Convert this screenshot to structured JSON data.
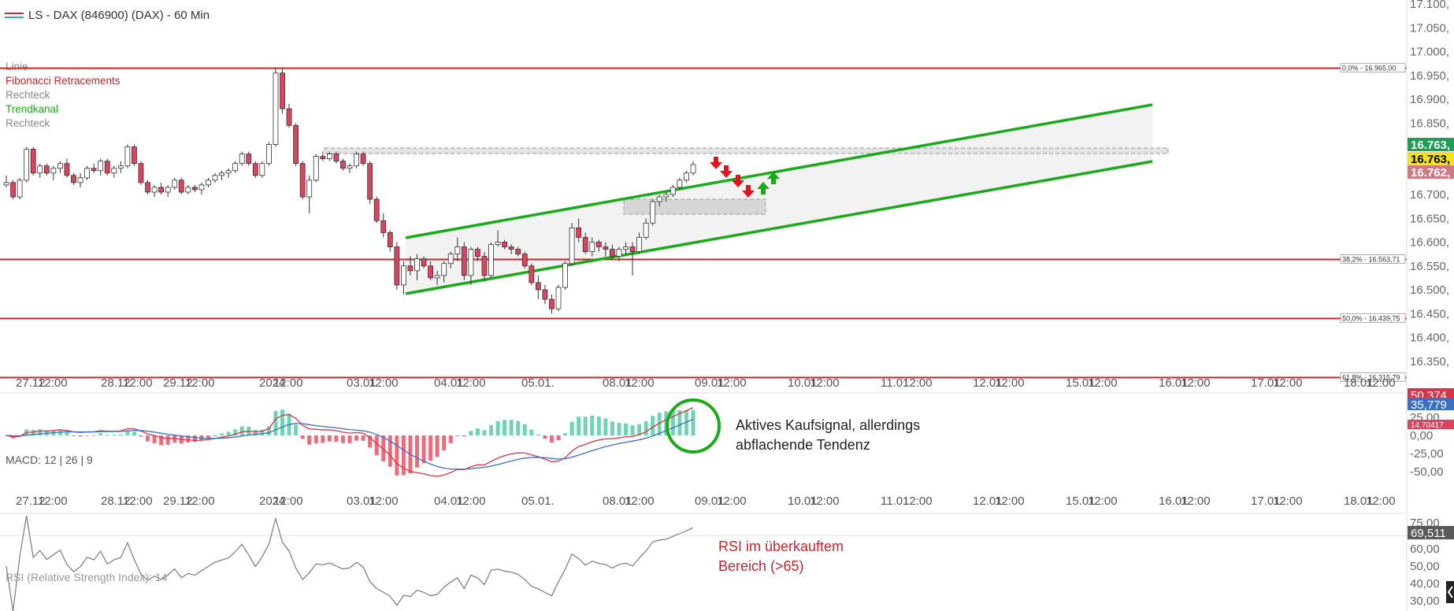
{
  "header": {
    "title": "LS - DAX (846900) (DAX) - 60 Min"
  },
  "colors": {
    "background": "#ffffff",
    "bull": "#2cb98d",
    "bear": "#d9455f",
    "channel": "#1aaa1a",
    "fib": "#c0282d",
    "macd_line": "#d6364a",
    "signal_line": "#3a6fc4",
    "rsi_line": "#7a7a7a",
    "annotation_red": "#c0282d",
    "annotation_dark": "#222222"
  },
  "drawing_legend": [
    {
      "label": "Linie",
      "color": "#8a8a8a"
    },
    {
      "label": "Fibonacci Retracements",
      "color": "#c0282d"
    },
    {
      "label": "Rechteck",
      "color": "#8a8a8a"
    },
    {
      "label": "Trendkanal",
      "color": "#1aaa1a"
    },
    {
      "label": "Rechteck",
      "color": "#8a8a8a"
    }
  ],
  "x_axis_labels": [
    "27.12",
    "12:00",
    "28.12",
    "12:00",
    "29.12",
    "12:00",
    "2024",
    "12:00",
    "03.01",
    "12:00",
    "04.01",
    "12:00",
    "05.01.",
    "08.01",
    "12:00",
    "09.01",
    "12:00",
    "10.01",
    "12:00",
    "11.01",
    "12:00",
    "12.01",
    "12:00",
    "15.01",
    "12:00",
    "16.01",
    "12:00",
    "17.01",
    "12:00",
    "18.01",
    "12:00"
  ],
  "price_axis": {
    "ticks": [
      "17.100,",
      "17.050,",
      "17.000,",
      "16.950,",
      "16.900,",
      "16.850,",
      "16.800,",
      "16.750,",
      "16.700,",
      "16.650,",
      "16.600,",
      "16.550,",
      "16.500,",
      "16.450,",
      "16.400,",
      "16.350,"
    ],
    "badges": [
      {
        "label": "16.763,",
        "bg": "#1e9e55",
        "fg": "#ffffff",
        "value": 16763
      },
      {
        "label": "16.763,",
        "bg": "#f2e216",
        "fg": "#000000",
        "value": 16763
      },
      {
        "label": "16.762,",
        "bg": "#d07a86",
        "fg": "#ffffff",
        "value": 16762
      }
    ]
  },
  "fib_levels": [
    {
      "label": "0,0% - 16.965,00",
      "value": 16965
    },
    {
      "label": "38,2% - 16.563,71",
      "value": 16563.71
    },
    {
      "label": "50,0% - 16.439,75",
      "value": 16439.75
    },
    {
      "label": "61,8% - 16.315,79",
      "value": 16315.79
    }
  ],
  "macd": {
    "label": "MACD: 12 | 26 | 9",
    "axis_ticks": [
      "25,00",
      "0,00",
      "-25,00",
      "-50,00"
    ],
    "badges": [
      {
        "label": "50,374",
        "bg": "#d6364a",
        "fg": "#ffffff"
      },
      {
        "label": "35,779",
        "bg": "#3a6fc4",
        "fg": "#ffffff"
      },
      {
        "label": "14,70417",
        "bg": "#d9455f",
        "fg": "#ffffff"
      }
    ]
  },
  "rsi": {
    "label": "RSI (Relative Strength Index): 14",
    "axis_ticks": [
      "75,00",
      "60,00",
      "50,00",
      "40,00",
      "30,00"
    ],
    "badge": {
      "label": "69,511",
      "bg": "#5a5a5a",
      "fg": "#ffffff"
    }
  },
  "annotations": {
    "macd_note_line1": "Aktives Kaufsignal, allerdings",
    "macd_note_line2": "abflachende Tendenz",
    "rsi_note_line1": "RSI im überkauftem",
    "rsi_note_line2": "Bereich (>65)"
  },
  "chart_data": {
    "type": "candlestick",
    "title": "LS - DAX (846900) (DAX) - 60 Min",
    "price_range": [
      16300,
      17110
    ],
    "candles_ohlc": [
      [
        16720,
        16740,
        16715,
        16725
      ],
      [
        16725,
        16730,
        16690,
        16695
      ],
      [
        16695,
        16735,
        16690,
        16730
      ],
      [
        16730,
        16800,
        16725,
        16795
      ],
      [
        16795,
        16800,
        16740,
        16745
      ],
      [
        16745,
        16765,
        16735,
        16760
      ],
      [
        16760,
        16765,
        16740,
        16745
      ],
      [
        16745,
        16760,
        16730,
        16755
      ],
      [
        16755,
        16770,
        16745,
        16765
      ],
      [
        16765,
        16775,
        16735,
        16740
      ],
      [
        16740,
        16745,
        16720,
        16725
      ],
      [
        16725,
        16745,
        16715,
        16735
      ],
      [
        16735,
        16760,
        16730,
        16755
      ],
      [
        16755,
        16765,
        16745,
        16750
      ],
      [
        16750,
        16775,
        16740,
        16770
      ],
      [
        16770,
        16775,
        16740,
        16745
      ],
      [
        16745,
        16760,
        16735,
        16755
      ],
      [
        16755,
        16770,
        16745,
        16760
      ],
      [
        16760,
        16805,
        16755,
        16800
      ],
      [
        16800,
        16805,
        16760,
        16765
      ],
      [
        16765,
        16770,
        16720,
        16725
      ],
      [
        16725,
        16730,
        16700,
        16705
      ],
      [
        16705,
        16720,
        16695,
        16715
      ],
      [
        16715,
        16725,
        16700,
        16705
      ],
      [
        16705,
        16720,
        16695,
        16715
      ],
      [
        16715,
        16735,
        16710,
        16730
      ],
      [
        16730,
        16735,
        16700,
        16705
      ],
      [
        16705,
        16720,
        16700,
        16715
      ],
      [
        16715,
        16720,
        16705,
        16710
      ],
      [
        16710,
        16725,
        16700,
        16720
      ],
      [
        16720,
        16735,
        16715,
        16730
      ],
      [
        16730,
        16745,
        16725,
        16740
      ],
      [
        16740,
        16750,
        16730,
        16745
      ],
      [
        16745,
        16755,
        16735,
        16750
      ],
      [
        16750,
        16770,
        16745,
        16765
      ],
      [
        16765,
        16790,
        16760,
        16785
      ],
      [
        16785,
        16790,
        16760,
        16765
      ],
      [
        16765,
        16770,
        16735,
        16740
      ],
      [
        16740,
        16770,
        16735,
        16765
      ],
      [
        16765,
        16810,
        16760,
        16805
      ],
      [
        16805,
        16965,
        16800,
        16955
      ],
      [
        16955,
        16965,
        16870,
        16880
      ],
      [
        16880,
        16890,
        16840,
        16845
      ],
      [
        16845,
        16850,
        16760,
        16765
      ],
      [
        16765,
        16770,
        16690,
        16695
      ],
      [
        16695,
        16740,
        16660,
        16730
      ],
      [
        16730,
        16785,
        16725,
        16780
      ],
      [
        16780,
        16790,
        16770,
        16775
      ],
      [
        16775,
        16790,
        16770,
        16785
      ],
      [
        16785,
        16790,
        16765,
        16770
      ],
      [
        16770,
        16775,
        16750,
        16755
      ],
      [
        16755,
        16765,
        16745,
        16760
      ],
      [
        16760,
        16790,
        16755,
        16785
      ],
      [
        16785,
        16790,
        16760,
        16765
      ],
      [
        16765,
        16770,
        16680,
        16690
      ],
      [
        16690,
        16695,
        16640,
        16645
      ],
      [
        16645,
        16660,
        16610,
        16620
      ],
      [
        16620,
        16625,
        16580,
        16590
      ],
      [
        16590,
        16600,
        16500,
        16510
      ],
      [
        16510,
        16560,
        16490,
        16550
      ],
      [
        16550,
        16570,
        16530,
        16540
      ],
      [
        16540,
        16575,
        16520,
        16565
      ],
      [
        16565,
        16570,
        16545,
        16550
      ],
      [
        16550,
        16560,
        16520,
        16525
      ],
      [
        16525,
        16540,
        16510,
        16530
      ],
      [
        16530,
        16560,
        16515,
        16555
      ],
      [
        16555,
        16580,
        16545,
        16575
      ],
      [
        16575,
        16610,
        16560,
        16590
      ],
      [
        16590,
        16600,
        16520,
        16530
      ],
      [
        16530,
        16590,
        16510,
        16585
      ],
      [
        16585,
        16590,
        16560,
        16570
      ],
      [
        16570,
        16580,
        16520,
        16530
      ],
      [
        16530,
        16600,
        16525,
        16595
      ],
      [
        16595,
        16625,
        16590,
        16600
      ],
      [
        16600,
        16605,
        16585,
        16590
      ],
      [
        16590,
        16595,
        16575,
        16585
      ],
      [
        16585,
        16590,
        16570,
        16575
      ],
      [
        16575,
        16580,
        16545,
        16550
      ],
      [
        16550,
        16555,
        16510,
        16515
      ],
      [
        16515,
        16530,
        16480,
        16500
      ],
      [
        16500,
        16510,
        16470,
        16480
      ],
      [
        16480,
        16490,
        16450,
        16460
      ],
      [
        16460,
        16510,
        16455,
        16505
      ],
      [
        16505,
        16560,
        16500,
        16555
      ],
      [
        16555,
        16640,
        16550,
        16630
      ],
      [
        16630,
        16650,
        16600,
        16610
      ],
      [
        16610,
        16620,
        16575,
        16580
      ],
      [
        16580,
        16610,
        16570,
        16600
      ],
      [
        16600,
        16605,
        16580,
        16590
      ],
      [
        16590,
        16600,
        16570,
        16585
      ],
      [
        16585,
        16595,
        16565,
        16570
      ],
      [
        16570,
        16590,
        16560,
        16585
      ],
      [
        16585,
        16600,
        16575,
        16590
      ],
      [
        16590,
        16600,
        16530,
        16580
      ],
      [
        16580,
        16620,
        16575,
        16610
      ],
      [
        16610,
        16650,
        16605,
        16640
      ],
      [
        16640,
        16690,
        16635,
        16685
      ],
      [
        16685,
        16700,
        16675,
        16695
      ],
      [
        16695,
        16705,
        16685,
        16700
      ],
      [
        16700,
        16720,
        16695,
        16715
      ],
      [
        16715,
        16735,
        16710,
        16730
      ],
      [
        16730,
        16750,
        16725,
        16745
      ],
      [
        16745,
        16770,
        16740,
        16763
      ]
    ]
  }
}
